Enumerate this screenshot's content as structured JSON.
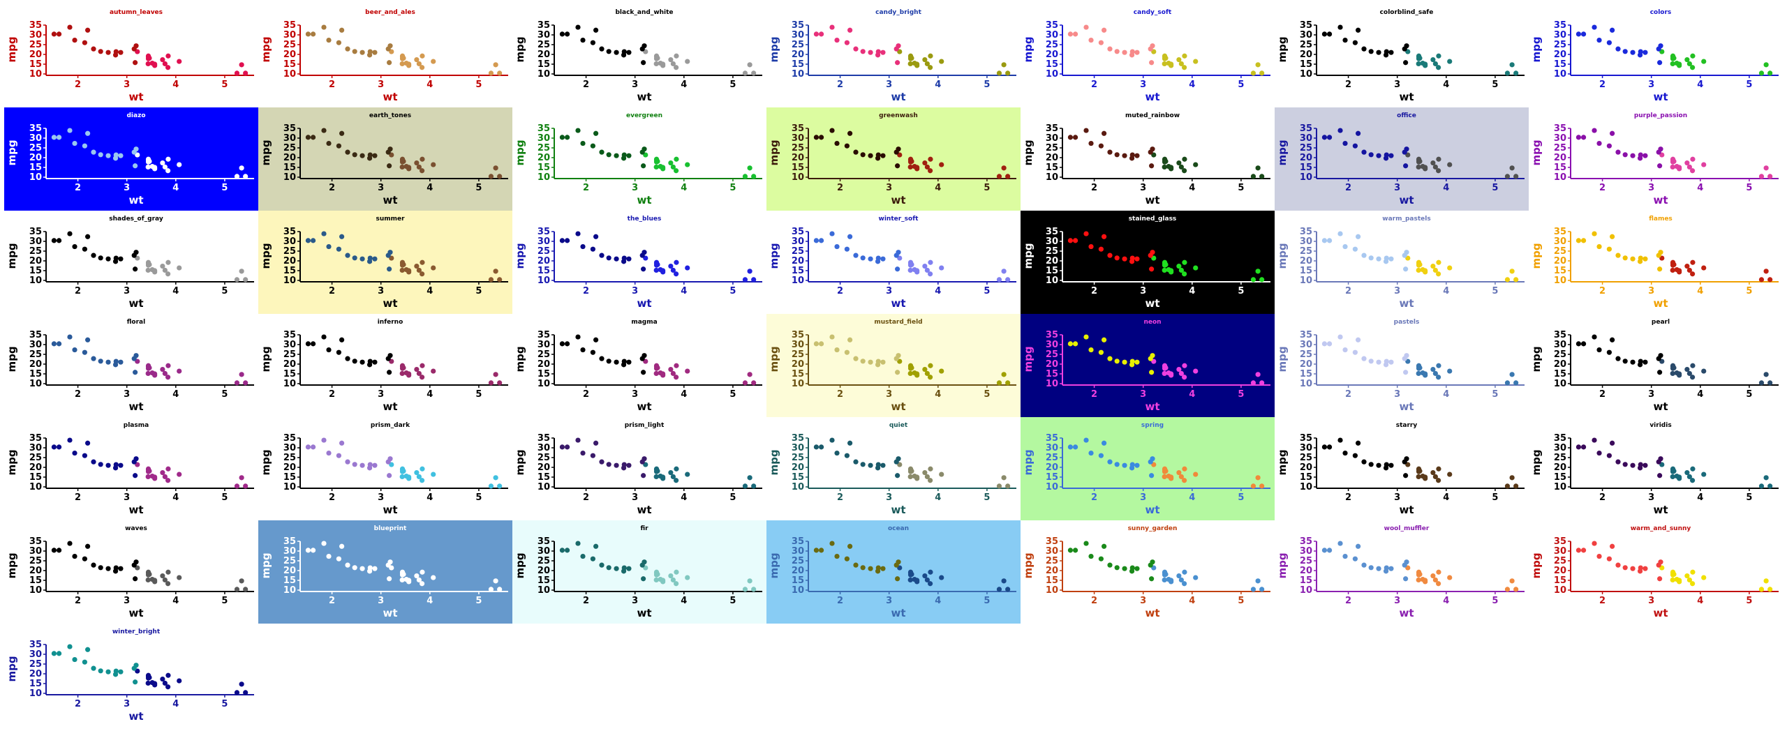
{
  "chart_data": {
    "type": "scatter",
    "xlabel": "wt",
    "ylabel": "mpg",
    "xlim": [
      1.35,
      5.6
    ],
    "ylim": [
      10,
      35
    ],
    "xticks": [
      2,
      3,
      4,
      5
    ],
    "yticks": [
      10,
      15,
      20,
      25,
      30,
      35
    ],
    "grid": false,
    "group_split_x": 3.2,
    "points": [
      [
        2.62,
        21.0
      ],
      [
        2.875,
        21.0
      ],
      [
        2.32,
        22.8
      ],
      [
        3.215,
        21.4
      ],
      [
        3.44,
        18.7
      ],
      [
        3.46,
        18.1
      ],
      [
        3.57,
        14.3
      ],
      [
        3.19,
        24.4
      ],
      [
        3.15,
        22.8
      ],
      [
        3.44,
        19.2
      ],
      [
        3.44,
        17.8
      ],
      [
        4.07,
        16.4
      ],
      [
        3.73,
        17.3
      ],
      [
        3.78,
        15.2
      ],
      [
        5.25,
        10.4
      ],
      [
        5.424,
        10.4
      ],
      [
        5.345,
        14.7
      ],
      [
        2.2,
        32.4
      ],
      [
        1.615,
        30.4
      ],
      [
        1.835,
        33.9
      ],
      [
        2.465,
        21.5
      ],
      [
        3.52,
        15.5
      ],
      [
        3.435,
        15.2
      ],
      [
        3.84,
        13.3
      ],
      [
        3.845,
        19.2
      ],
      [
        1.935,
        27.3
      ],
      [
        2.14,
        26.0
      ],
      [
        1.513,
        30.4
      ],
      [
        3.17,
        15.8
      ],
      [
        2.77,
        19.7
      ],
      [
        3.57,
        15.0
      ],
      [
        2.78,
        21.4
      ]
    ],
    "panels": [
      {
        "title": "autumn_leaves",
        "bg": "#ffffff",
        "axis": "#c00000",
        "low": "#b01010",
        "high": "#e01050"
      },
      {
        "title": "beer_and_ales",
        "bg": "#ffffff",
        "axis": "#c00000",
        "low": "#a87c40",
        "high": "#d49a50"
      },
      {
        "title": "black_and_white",
        "bg": "#ffffff",
        "axis": "#000000",
        "low": "#000000",
        "high": "#9a9a9a"
      },
      {
        "title": "candy_bright",
        "bg": "#ffffff",
        "axis": "#1e3ca8",
        "low": "#e8307a",
        "high": "#9a9a10"
      },
      {
        "title": "candy_soft",
        "bg": "#ffffff",
        "axis": "#1818d0",
        "low": "#f78a8a",
        "high": "#c8c020"
      },
      {
        "title": "colorblind_safe",
        "bg": "#ffffff",
        "axis": "#000000",
        "low": "#000000",
        "high": "#1a7a78"
      },
      {
        "title": "colors",
        "bg": "#ffffff",
        "axis": "#1818d0",
        "low": "#1a2adc",
        "high": "#22c022"
      },
      {
        "title": "diazo",
        "bg": "#0000ff",
        "axis": "#ffffff",
        "low": "#9ac8f0",
        "high": "#ffffff"
      },
      {
        "title": "earth_tones",
        "bg": "#d4d6b4",
        "axis": "#000000",
        "low": "#3a2a14",
        "high": "#7a5030"
      },
      {
        "title": "evergreen",
        "bg": "#ffffff",
        "axis": "#108010",
        "low": "#0a5a1a",
        "high": "#18c030"
      },
      {
        "title": "greenwash",
        "bg": "#dcfca0",
        "axis": "#3c1c0c",
        "low": "#2a0c00",
        "high": "#a02010"
      },
      {
        "title": "muted_rainbow",
        "bg": "#ffffff",
        "axis": "#000000",
        "low": "#5a1a10",
        "high": "#1a4a1a"
      },
      {
        "title": "office",
        "bg": "#cccfe0",
        "axis": "#1818a0",
        "low": "#1414a0",
        "high": "#505050"
      },
      {
        "title": "purple_passion",
        "bg": "#ffffff",
        "axis": "#8a10b0",
        "low": "#8a10a8",
        "high": "#e040a0"
      },
      {
        "title": "shades_of_gray",
        "bg": "#ffffff",
        "axis": "#000000",
        "low": "#000000",
        "high": "#9a9a9a"
      },
      {
        "title": "summer",
        "bg": "#fdf6bc",
        "axis": "#000000",
        "low": "#2a5a8a",
        "high": "#8a5a30"
      },
      {
        "title": "the_blues",
        "bg": "#ffffff",
        "axis": "#1818b0",
        "low": "#0a0a8a",
        "high": "#2020e0"
      },
      {
        "title": "winter_soft",
        "bg": "#ffffff",
        "axis": "#1818b0",
        "low": "#3a6ad8",
        "high": "#8080f0"
      },
      {
        "title": "stained_glass",
        "bg": "#000000",
        "axis": "#ffffff",
        "low": "#ff1010",
        "high": "#20e020"
      },
      {
        "title": "warm_pastels",
        "bg": "#ffffff",
        "axis": "#6a78b8",
        "low": "#a8c8f0",
        "high": "#f0d010"
      },
      {
        "title": "flames",
        "bg": "#ffffff",
        "axis": "#f0a000",
        "low": "#f0c000",
        "high": "#c02010"
      },
      {
        "title": "floral",
        "bg": "#ffffff",
        "axis": "#000000",
        "low": "#2a5a9a",
        "high": "#9a2a8a"
      },
      {
        "title": "inferno",
        "bg": "#ffffff",
        "axis": "#000000",
        "low": "#000000",
        "high": "#9a2a6a"
      },
      {
        "title": "magma",
        "bg": "#ffffff",
        "axis": "#000000",
        "low": "#000000",
        "high": "#a02a80"
      },
      {
        "title": "mustard_field",
        "bg": "#fdfcd8",
        "axis": "#6a5010",
        "low": "#c8c070",
        "high": "#a0a000"
      },
      {
        "title": "neon",
        "bg": "#000080",
        "axis": "#f040e0",
        "low": "#e8f000",
        "high": "#f040e0"
      },
      {
        "title": "pastels",
        "bg": "#ffffff",
        "axis": "#6a78b8",
        "low": "#c0c8f0",
        "high": "#3a78b0"
      },
      {
        "title": "pearl",
        "bg": "#ffffff",
        "axis": "#000000",
        "low": "#000000",
        "high": "#2a4a6a"
      },
      {
        "title": "plasma",
        "bg": "#ffffff",
        "axis": "#000000",
        "low": "#0a0a8a",
        "high": "#a02a8a"
      },
      {
        "title": "prism_dark",
        "bg": "#ffffff",
        "axis": "#000000",
        "low": "#9a78d0",
        "high": "#40c0e0"
      },
      {
        "title": "prism_light",
        "bg": "#ffffff",
        "axis": "#000000",
        "low": "#3a1a6a",
        "high": "#1a6a7a"
      },
      {
        "title": "quiet",
        "bg": "#ffffff",
        "axis": "#1a5a5a",
        "low": "#1a5a6a",
        "high": "#8a8a6a"
      },
      {
        "title": "spring",
        "bg": "#b4f8a0",
        "axis": "#3a6ad8",
        "low": "#3a8ae0",
        "high": "#f08a3a"
      },
      {
        "title": "starry",
        "bg": "#ffffff",
        "axis": "#000000",
        "low": "#000000",
        "high": "#5a3a1a"
      },
      {
        "title": "viridis",
        "bg": "#ffffff",
        "axis": "#000000",
        "low": "#3a0a5a",
        "high": "#1a6a7a"
      },
      {
        "title": "waves",
        "bg": "#ffffff",
        "axis": "#000000",
        "low": "#000000",
        "high": "#5a5a5a"
      },
      {
        "title": "blueprint",
        "bg": "#6699cc",
        "axis": "#ffffff",
        "low": "#ffffff",
        "high": "#ffffff"
      },
      {
        "title": "fir",
        "bg": "#e8fcfc",
        "axis": "#000000",
        "low": "#1a6a6a",
        "high": "#80c8c0"
      },
      {
        "title": "ocean",
        "bg": "#88ccf4",
        "axis": "#3a6ab0",
        "low": "#6a6a10",
        "high": "#1a4a8a"
      },
      {
        "title": "sunny_garden",
        "bg": "#ffffff",
        "axis": "#c04010",
        "low": "#1a8a1a",
        "high": "#4a90d0"
      },
      {
        "title": "wool_muffler",
        "bg": "#ffffff",
        "axis": "#8a20b0",
        "low": "#5a90d0",
        "high": "#f08a40"
      },
      {
        "title": "warm_and_sunny",
        "bg": "#ffffff",
        "axis": "#c01010",
        "low": "#f04040",
        "high": "#f0e000"
      },
      {
        "title": "winter_bright",
        "bg": "#ffffff",
        "axis": "#1818a0",
        "low": "#109090",
        "high": "#0a0a8a"
      }
    ]
  }
}
